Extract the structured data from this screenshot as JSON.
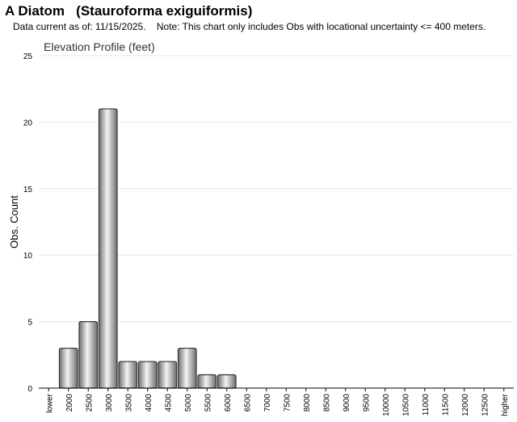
{
  "header": {
    "common_name": "A Diatom",
    "scientific_name": "(Stauroforma exiguiformis)",
    "note": "Data current as of: 11/15/2025.    Note: This chart only includes Obs with locational uncertainty <= 400 meters."
  },
  "chart_data": {
    "type": "bar",
    "title": "Elevation Profile (feet)",
    "xlabel": "",
    "ylabel": "Obs. Count",
    "ylim": [
      0,
      25
    ],
    "yticks": [
      0,
      5,
      10,
      15,
      20,
      25
    ],
    "grid": true,
    "categories": [
      "lower",
      "2000",
      "2500",
      "3000",
      "3500",
      "4000",
      "4500",
      "5000",
      "5500",
      "6000",
      "6500",
      "7000",
      "7500",
      "8000",
      "8500",
      "9000",
      "9500",
      "10000",
      "10500",
      "11000",
      "11500",
      "12000",
      "12500",
      "higher"
    ],
    "values": [
      0,
      3,
      5,
      21,
      2,
      2,
      2,
      3,
      1,
      1,
      0,
      0,
      0,
      0,
      0,
      0,
      0,
      0,
      0,
      0,
      0,
      0,
      0,
      0
    ],
    "colors": {
      "bar_dark": "#6e6e6e",
      "bar_light": "#f4f4f4",
      "bar_stroke": "#333333",
      "grid": "#e6e6e6",
      "axis": "#000000"
    }
  }
}
